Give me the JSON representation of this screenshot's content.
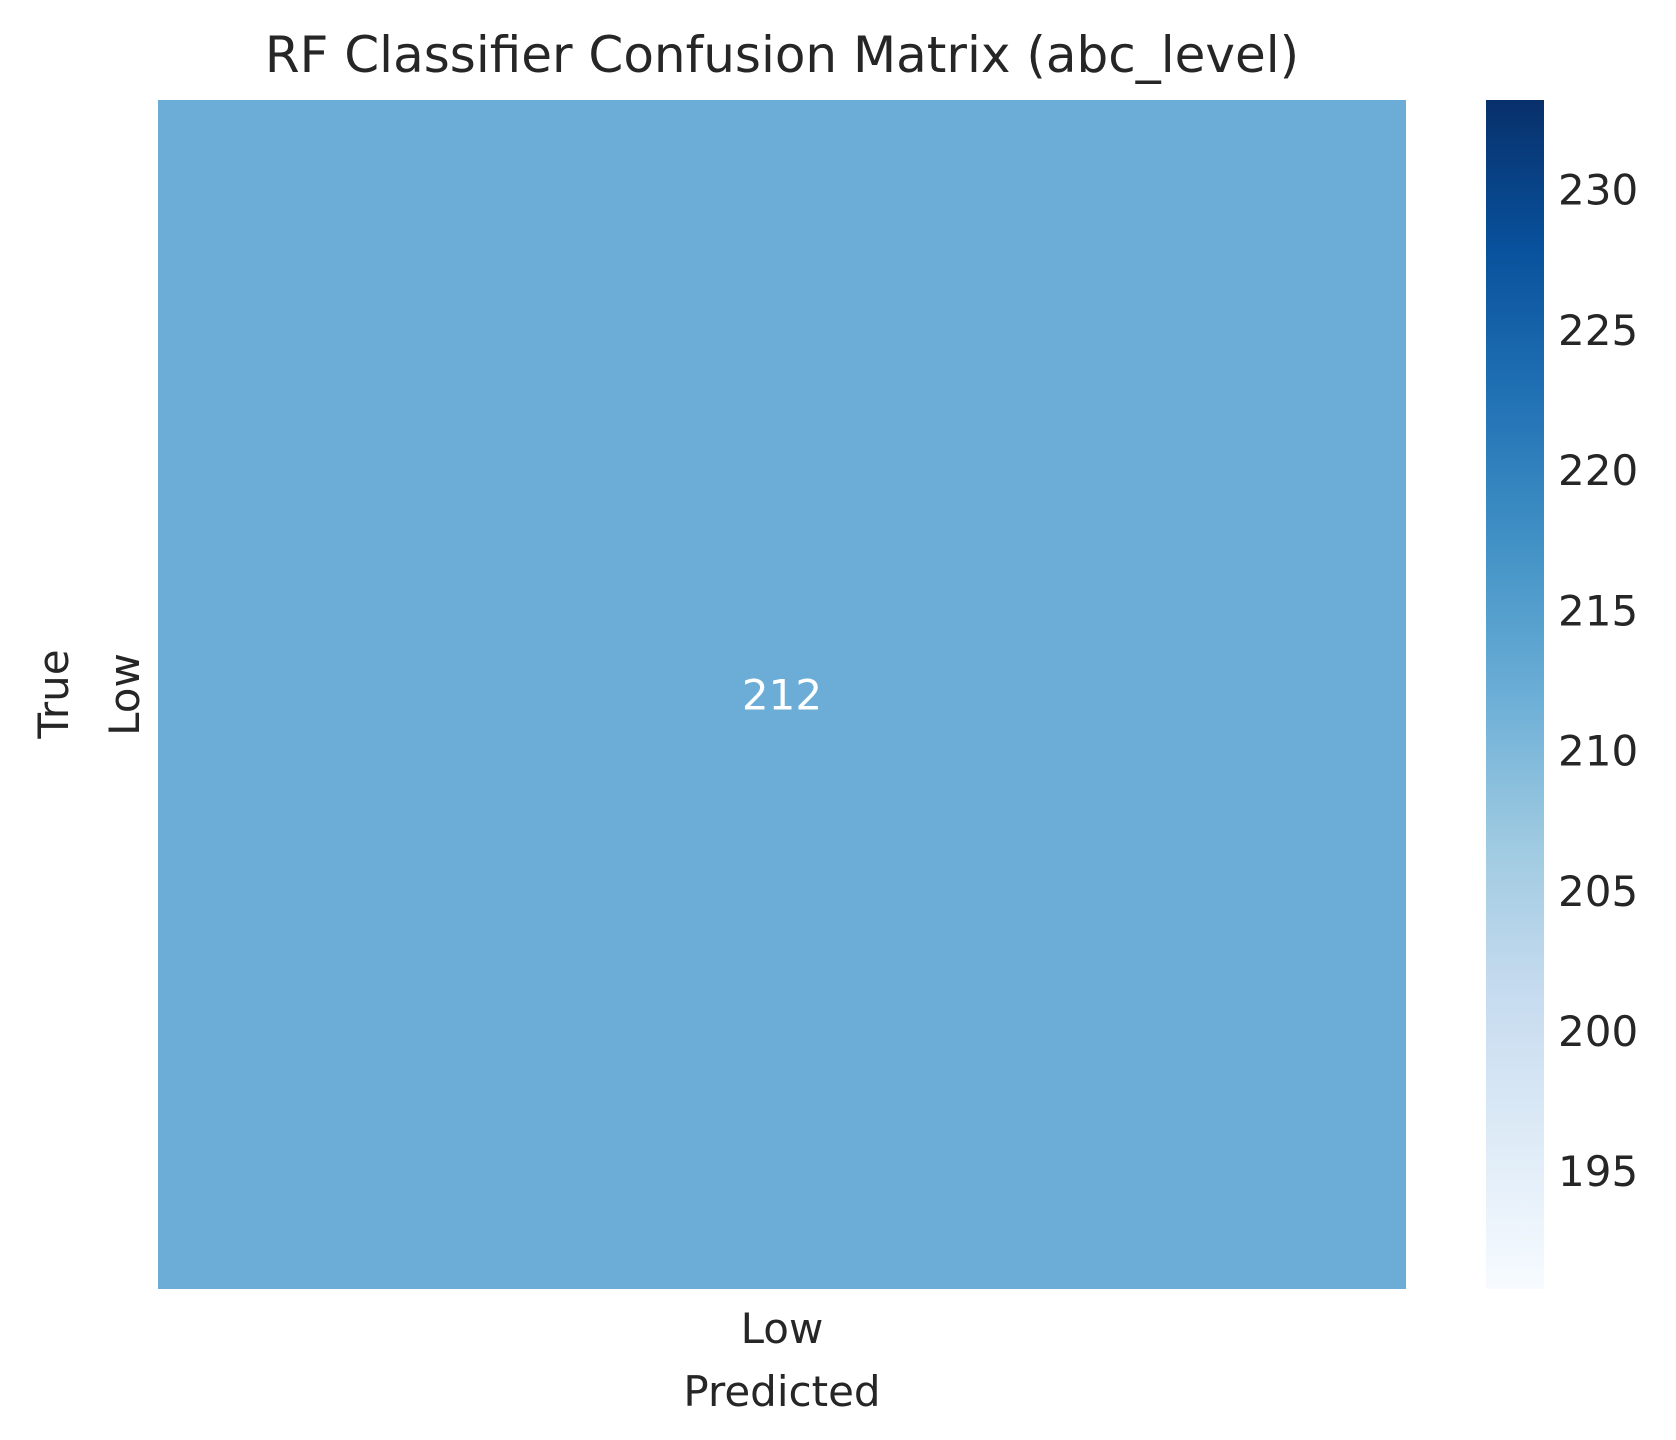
{
  "chart_data": {
    "type": "heatmap",
    "title": "RF Classifier Confusion Matrix (abc_level)",
    "xlabel": "Predicted",
    "ylabel": "True",
    "x_categories": [
      "Low"
    ],
    "y_categories": [
      "Low"
    ],
    "matrix": [
      [
        212
      ]
    ],
    "cell_labels": [
      [
        "212"
      ]
    ],
    "colormap": "Blues",
    "colorbar": {
      "range": [
        190.8,
        233.2
      ],
      "ticks": [
        195,
        200,
        205,
        210,
        215,
        220,
        225,
        230
      ],
      "tick_labels": [
        "195",
        "200",
        "205",
        "210",
        "215",
        "220",
        "225",
        "230"
      ]
    },
    "grid": false,
    "legend": "colorbar-right"
  },
  "colors": {
    "cell": "#6badd6",
    "cell_text": "#ffffff",
    "text": "#262626",
    "colormap_stops": [
      "#f7fbff",
      "#deebf7",
      "#c6dbef",
      "#9ecae1",
      "#6baed6",
      "#4292c6",
      "#2171b5",
      "#08519c",
      "#08306b"
    ]
  }
}
